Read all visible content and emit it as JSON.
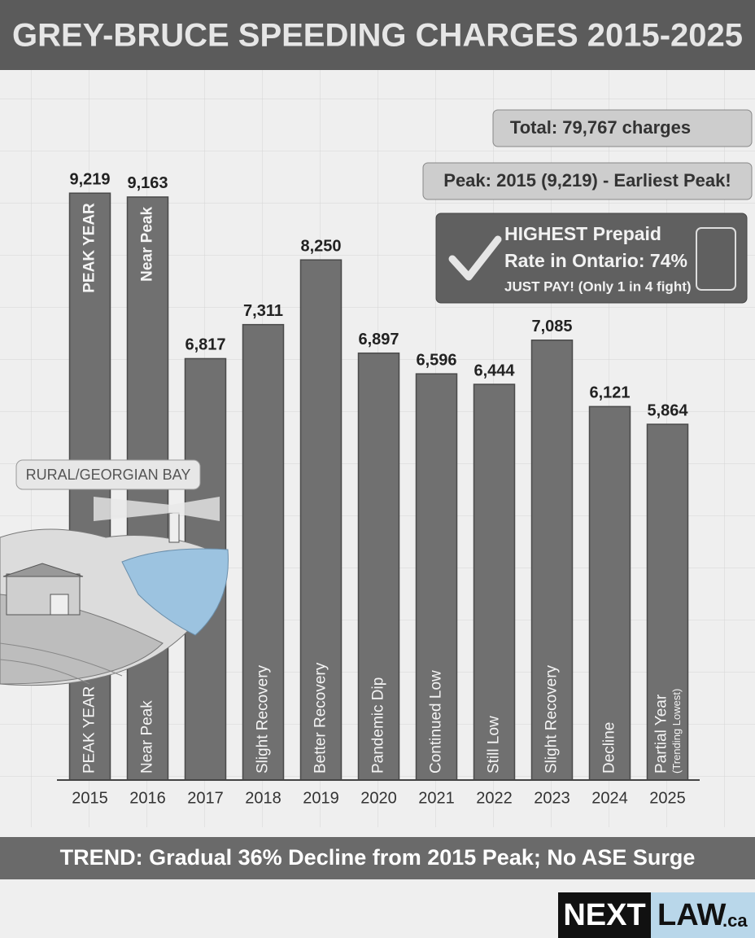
{
  "chart_data": {
    "type": "bar",
    "title": "GREY-BRUCE SPEEDING CHARGES 2015-2025",
    "categories": [
      "2015",
      "2016",
      "2017",
      "2018",
      "2019",
      "2020",
      "2021",
      "2022",
      "2023",
      "2024",
      "2025"
    ],
    "values": [
      9219,
      9163,
      6817,
      7311,
      8250,
      6897,
      6596,
      6444,
      7085,
      6121,
      5864
    ],
    "value_labels": [
      "9,219",
      "9,163",
      "6,817",
      "7,311",
      "8,250",
      "6,897",
      "6,596",
      "6,444",
      "7,085",
      "6,121",
      "5,864"
    ],
    "color": "#707070",
    "ylim": [
      700,
      10900
    ],
    "top_notes": [
      "PEAK YEAR",
      "Near Peak",
      null,
      null,
      null,
      null,
      null,
      null,
      null,
      null,
      null
    ],
    "bar_notes": [
      "PEAK YEAR",
      "Near Peak",
      null,
      "Slight Recovery",
      "Better Recovery",
      "Pandemic Dip",
      "Continued Low",
      "Still Low",
      "Slight Recovery",
      "Decline",
      "Partial Year"
    ],
    "bar_subnotes": [
      null,
      null,
      null,
      null,
      null,
      null,
      null,
      null,
      null,
      null,
      "(Trending Lowest)"
    ],
    "total_note": "Total: 79,767 charges",
    "peak_note": "Peak: 2015 (9,219) - Earliest Peak!",
    "prepaid_note": [
      "HIGHEST Prepaid",
      "Rate in Ontario: 74%",
      "JUST PAY! (Only 1 in 4 fight)"
    ],
    "region_label": "RURAL/GEORGIAN BAY",
    "trend": "TREND: Gradual 36% Decline from 2015 Peak; No ASE Surge",
    "logo": [
      "NEXT",
      "LAW",
      ".ca"
    ]
  }
}
